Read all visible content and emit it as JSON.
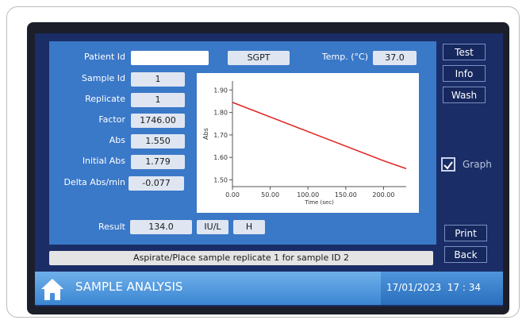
{
  "screen": {
    "patient_id_label": "Patient Id",
    "test": "SGPT",
    "temperature": {
      "label": "Temp. (°C)",
      "value": "37.0"
    },
    "fields": [
      {
        "label": "Sample Id",
        "value": "1"
      },
      {
        "label": "Replicate",
        "value": "1"
      },
      {
        "label": "Factor",
        "value": "1746.00"
      },
      {
        "label": "Abs",
        "value": "1.550"
      },
      {
        "label": "Initial Abs",
        "value": "1.779"
      },
      {
        "label": "Delta Abs/min",
        "value": "-0.077"
      }
    ],
    "result": {
      "label": "Result",
      "value": "134.0",
      "unit": "IU/L",
      "flag": "H"
    },
    "message": "Aspirate/Place sample replicate 1 for sample ID 2",
    "buttons": [
      "Test",
      "Info",
      "Wash",
      "Print",
      "Back"
    ],
    "graph_toggle": "Graph",
    "footer": {
      "title": "SAMPLE ANALYSIS",
      "datetime": "17/01/2023  17 : 34"
    },
    "chart": {
      "type": "line",
      "x_label": "Time (sec)",
      "y_label": "Abs",
      "x": [
        0,
        50,
        100,
        150,
        200,
        230
      ],
      "values": [
        1.845,
        1.78,
        1.715,
        1.65,
        1.585,
        1.55
      ],
      "color": "#e02020",
      "xlim": [
        0,
        230
      ],
      "ylim": [
        1.47,
        1.94
      ],
      "xticks": [
        {
          "value": 0,
          "label": "0.00"
        },
        {
          "value": 50,
          "label": "50.00"
        },
        {
          "value": 100,
          "label": "100.00"
        },
        {
          "value": 150,
          "label": "150.00"
        },
        {
          "value": 200,
          "label": "200.00"
        }
      ],
      "yticks": [
        {
          "value": 1.5,
          "label": "1.50"
        },
        {
          "value": 1.6,
          "label": "1.60"
        },
        {
          "value": 1.7,
          "label": "1.70"
        },
        {
          "value": 1.8,
          "label": "1.80"
        },
        {
          "value": 1.9,
          "label": "1.90"
        }
      ]
    }
  }
}
